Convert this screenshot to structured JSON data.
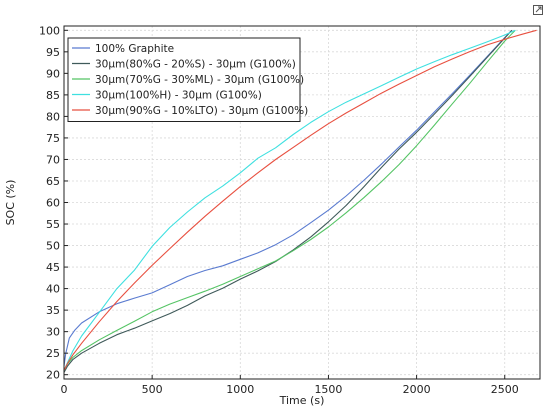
{
  "toolbar": {
    "export_icon": "export-icon"
  },
  "chart_data": {
    "type": "line",
    "title": "",
    "xlabel": "Time (s)",
    "ylabel": "SOC (%)",
    "xlim": [
      0,
      2700
    ],
    "ylim": [
      19,
      101
    ],
    "xticks": [
      0,
      500,
      1000,
      1500,
      2000,
      2500
    ],
    "yticks": [
      20,
      25,
      30,
      35,
      40,
      45,
      50,
      55,
      60,
      65,
      70,
      75,
      80,
      85,
      90,
      95,
      100
    ],
    "grid": true,
    "legend_position": "top-left",
    "series": [
      {
        "name": "100% Graphite",
        "color": "#5a7bd0",
        "x": [
          0,
          10,
          30,
          60,
          100,
          200,
          300,
          400,
          500,
          600,
          700,
          800,
          900,
          1000,
          1100,
          1200,
          1300,
          1400,
          1500,
          1600,
          1700,
          1800,
          1900,
          2000,
          2100,
          2200,
          2300,
          2400,
          2500,
          2540
        ],
        "y": [
          22,
          25,
          28.5,
          30.3,
          32,
          34.6,
          36.5,
          37.8,
          39,
          40.9,
          42.8,
          44.2,
          45.3,
          46.8,
          48.3,
          50.2,
          52.5,
          55.3,
          58.2,
          61.5,
          65.1,
          68.9,
          72.9,
          76.8,
          81,
          85.2,
          89.5,
          93.9,
          98.3,
          100
        ]
      },
      {
        "name": "30µm(80%G - 20%S) - 30µm (G100%)",
        "color": "#3f5a5a",
        "x": [
          0,
          20,
          50,
          100,
          200,
          300,
          400,
          500,
          600,
          700,
          800,
          900,
          1000,
          1100,
          1200,
          1300,
          1400,
          1500,
          1600,
          1700,
          1800,
          1900,
          2000,
          2100,
          2200,
          2300,
          2400,
          2500,
          2540
        ],
        "y": [
          20.5,
          22,
          23.5,
          25,
          27.3,
          29.3,
          30.8,
          32.5,
          34.2,
          36.1,
          38.3,
          40.1,
          42.2,
          44.1,
          46.3,
          49,
          52,
          55.5,
          59.3,
          63.6,
          68.1,
          72.4,
          76.3,
          80.5,
          84.8,
          89.2,
          93.7,
          98.2,
          100
        ]
      },
      {
        "name": "30µm(70%G - 30%ML) - 30µm (G100%)",
        "color": "#55c465",
        "x": [
          0,
          20,
          50,
          100,
          200,
          300,
          400,
          500,
          600,
          700,
          800,
          900,
          1000,
          1100,
          1200,
          1300,
          1400,
          1500,
          1600,
          1700,
          1800,
          1900,
          2000,
          2100,
          2200,
          2300,
          2400,
          2500,
          2560
        ],
        "y": [
          21,
          22.5,
          24,
          25.6,
          28.1,
          30.3,
          32.4,
          34.6,
          36.4,
          37.9,
          39.4,
          41,
          42.8,
          44.6,
          46.4,
          48.8,
          51.4,
          54.3,
          57.6,
          61.1,
          64.8,
          68.8,
          73.2,
          77.9,
          82.8,
          87.6,
          92.6,
          97.5,
          100
        ]
      },
      {
        "name": "30µm(100%H) - 30µm (G100%)",
        "color": "#3fe0e0",
        "x": [
          0,
          20,
          50,
          100,
          200,
          300,
          400,
          500,
          600,
          700,
          800,
          900,
          1000,
          1100,
          1200,
          1300,
          1400,
          1500,
          1600,
          1700,
          1800,
          1900,
          2000,
          2100,
          2200,
          2300,
          2400,
          2500,
          2560
        ],
        "y": [
          21,
          22.8,
          25.5,
          29,
          34.5,
          40,
          44.3,
          49.8,
          54.2,
          57.8,
          61.1,
          63.8,
          66.9,
          70.3,
          72.7,
          75.8,
          78.6,
          81.1,
          83.3,
          85.2,
          87.1,
          89.1,
          91,
          92.7,
          94.3,
          95.8,
          97.3,
          98.9,
          100
        ]
      },
      {
        "name": "30µm(90%G - 10%LTO) - 30µm (G100%)",
        "color": "#e85040",
        "x": [
          0,
          20,
          50,
          100,
          200,
          300,
          400,
          500,
          600,
          700,
          800,
          900,
          1000,
          1100,
          1200,
          1300,
          1400,
          1500,
          1600,
          1700,
          1800,
          1900,
          2000,
          2100,
          2200,
          2300,
          2400,
          2500,
          2600,
          2680
        ],
        "y": [
          21,
          22.6,
          24.6,
          27.3,
          32.3,
          37,
          41.3,
          45.4,
          49.3,
          53.1,
          56.8,
          60.3,
          63.7,
          66.9,
          70,
          72.8,
          75.6,
          78.3,
          80.8,
          83.1,
          85.4,
          87.5,
          89.5,
          91.5,
          93.3,
          95,
          96.6,
          97.9,
          99.1,
          100
        ]
      }
    ]
  }
}
